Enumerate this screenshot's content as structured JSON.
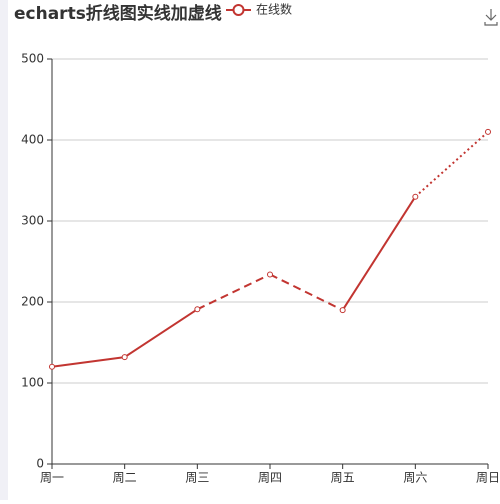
{
  "chart_data": {
    "type": "line",
    "title": "echarts折线图实线加虚线",
    "categories": [
      "周一",
      "周二",
      "周三",
      "周四",
      "周五",
      "周六",
      "周日"
    ],
    "series": [
      {
        "name": "在线数",
        "color": "#c23531",
        "values": [
          120,
          132,
          191,
          234,
          190,
          330,
          410
        ],
        "line_styles": [
          "solid",
          "solid",
          "dashed",
          "dashed",
          "solid",
          "dotted"
        ]
      }
    ],
    "ylim": [
      0,
      500
    ],
    "yticks": [
      0,
      100,
      200,
      300,
      400,
      500
    ],
    "grid": true,
    "legend": "top"
  }
}
